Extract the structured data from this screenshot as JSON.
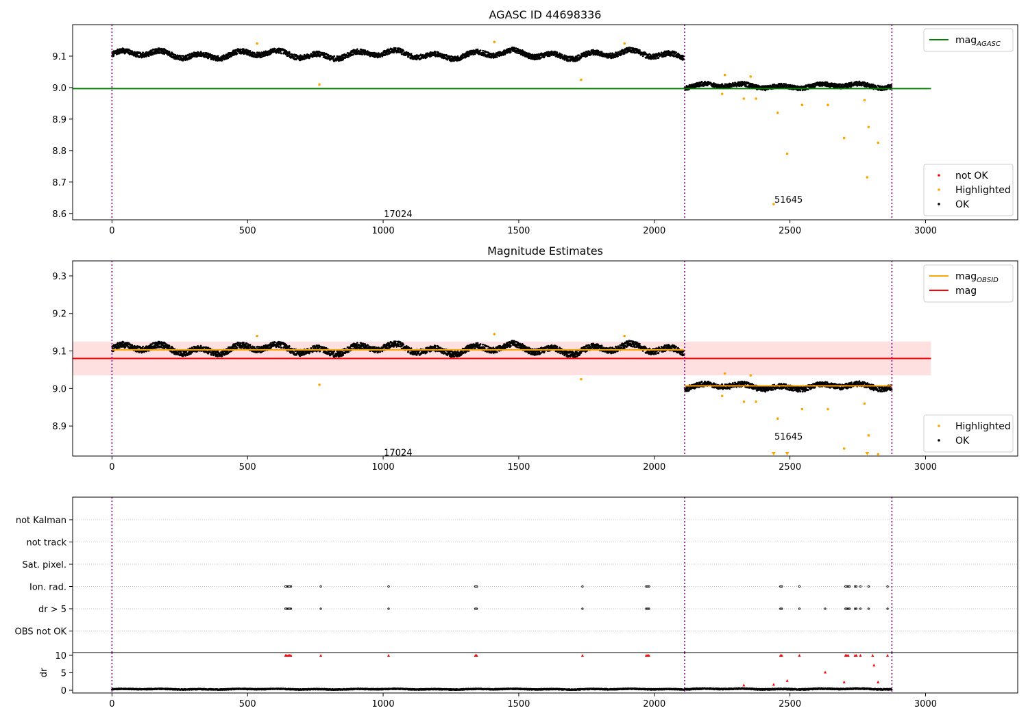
{
  "figure": {
    "background": "#ffffff",
    "vlines_color": "#800080",
    "obsid_boundaries": [
      0,
      2112,
      2876
    ]
  },
  "chart_data": [
    {
      "id": "panel1",
      "type": "scatter",
      "title": "AGASC ID 44698336",
      "xlim": [
        -145,
        3340
      ],
      "ylim": [
        8.58,
        9.2
      ],
      "xticks": [
        0,
        500,
        1000,
        1500,
        2000,
        2500,
        3000
      ],
      "yticks": [
        8.6,
        8.7,
        8.8,
        8.9,
        9.0,
        9.1
      ],
      "grid": false,
      "obsid_labels": [
        {
          "text": "17024",
          "x": 1055,
          "y": 8.6
        },
        {
          "text": "51645",
          "x": 2495,
          "y": 8.645
        }
      ],
      "lines": [
        {
          "name": "mag_AGASC",
          "color": "#008000",
          "x": [
            -145,
            3020
          ],
          "y": [
            8.997,
            8.997
          ]
        }
      ],
      "ok_segments": [
        {
          "x0": 0,
          "x1": 2110,
          "base": 9.105,
          "amp": 0.015,
          "noise": 0.008
        },
        {
          "x0": 2112,
          "x1": 2876,
          "base": 9.005,
          "amp": 0.009,
          "noise": 0.007
        }
      ],
      "highlighted": {
        "color": "#ffa500",
        "points": [
          [
            535,
            9.14
          ],
          [
            765,
            9.01
          ],
          [
            1410,
            9.145
          ],
          [
            1730,
            9.025
          ],
          [
            1890,
            9.14
          ],
          [
            2250,
            8.98
          ],
          [
            2260,
            9.04
          ],
          [
            2330,
            8.965
          ],
          [
            2355,
            9.035
          ],
          [
            2375,
            8.965
          ],
          [
            2440,
            8.63
          ],
          [
            2455,
            8.92
          ],
          [
            2490,
            8.79
          ],
          [
            2545,
            8.945
          ],
          [
            2640,
            8.945
          ],
          [
            2700,
            8.84
          ],
          [
            2775,
            8.96
          ],
          [
            2785,
            8.715
          ],
          [
            2790,
            8.875
          ],
          [
            2825,
            8.825
          ]
        ]
      },
      "legends": [
        {
          "position": "top-right",
          "entries": [
            {
              "label": "mag",
              "sub": "AGASC",
              "marker": "line",
              "color": "#008000"
            }
          ]
        },
        {
          "position": "bottom-right",
          "entries": [
            {
              "label": "not OK",
              "marker": "dot",
              "color": "#ff0000"
            },
            {
              "label": "Highlighted",
              "marker": "dot",
              "color": "#ffa500"
            },
            {
              "label": "OK",
              "marker": "dot",
              "color": "#000000"
            }
          ]
        }
      ]
    },
    {
      "id": "panel2",
      "type": "scatter",
      "title": "Magnitude Estimates",
      "xlim": [
        -145,
        3340
      ],
      "ylim": [
        8.82,
        9.34
      ],
      "xticks": [
        0,
        500,
        1000,
        1500,
        2000,
        2500,
        3000
      ],
      "yticks": [
        8.9,
        9.0,
        9.1,
        9.2,
        9.3
      ],
      "grid": false,
      "obsid_labels": [
        {
          "text": "17024",
          "x": 1055,
          "y": 8.83
        },
        {
          "text": "51645",
          "x": 2495,
          "y": 8.873
        }
      ],
      "band": {
        "color": "#ff0000",
        "opacity": 0.12,
        "x": [
          -145,
          3020
        ],
        "y": [
          9.035,
          9.125
        ]
      },
      "lines": [
        {
          "name": "mag",
          "color": "#ff0000",
          "x": [
            -145,
            3020
          ],
          "y": [
            9.08,
            9.08
          ]
        },
        {
          "name": "mag_OBSID",
          "color": "#ffa500",
          "x": [
            0,
            2110
          ],
          "y": [
            9.103,
            9.103
          ]
        },
        {
          "name": "mag_OBSID",
          "color": "#ffa500",
          "x": [
            2112,
            2876
          ],
          "y": [
            9.007,
            9.007
          ]
        }
      ],
      "ok_segments": [
        {
          "x0": 0,
          "x1": 2110,
          "base": 9.105,
          "amp": 0.015,
          "noise": 0.008
        },
        {
          "x0": 2112,
          "x1": 2876,
          "base": 9.005,
          "amp": 0.009,
          "noise": 0.007
        }
      ],
      "highlighted": {
        "color": "#ffa500",
        "points": [
          [
            535,
            9.14
          ],
          [
            765,
            9.01
          ],
          [
            1410,
            9.145
          ],
          [
            1730,
            9.025
          ],
          [
            1890,
            9.14
          ],
          [
            2250,
            8.98
          ],
          [
            2260,
            9.04
          ],
          [
            2330,
            8.965
          ],
          [
            2355,
            9.035
          ],
          [
            2375,
            8.965
          ],
          [
            2455,
            8.92
          ],
          [
            2545,
            8.945
          ],
          [
            2640,
            8.945
          ],
          [
            2700,
            8.84
          ],
          [
            2775,
            8.96
          ],
          [
            2790,
            8.875
          ],
          [
            2825,
            8.825
          ]
        ]
      },
      "off_scale_markers": {
        "color": "#ffa500",
        "x": [
          2440,
          2490,
          2785
        ],
        "note": "below ylim"
      },
      "legends": [
        {
          "position": "top-right",
          "entries": [
            {
              "label": "mag",
              "sub": "OBSID",
              "marker": "line",
              "color": "#ffa500"
            },
            {
              "label": "mag",
              "marker": "line",
              "color": "#ff0000"
            }
          ]
        },
        {
          "position": "bottom-right",
          "entries": [
            {
              "label": "Highlighted",
              "marker": "dot",
              "color": "#ffa500"
            },
            {
              "label": "OK",
              "marker": "dot",
              "color": "#000000"
            }
          ]
        }
      ]
    },
    {
      "id": "panel3",
      "type": "scatter",
      "title": "",
      "xlim": [
        -145,
        3340
      ],
      "categories": [
        "not Kalman",
        "not track",
        "Sat. pixel.",
        "Ion. rad.",
        "dr > 5",
        "OBS not OK"
      ],
      "grid": true,
      "flag_points": {
        "Ion. rad.": [
          640,
          645,
          650,
          655,
          660,
          770,
          1020,
          1340,
          1345,
          1735,
          1970,
          1975,
          1980,
          2465,
          2470,
          2535,
          2705,
          2710,
          2715,
          2720,
          2740,
          2745,
          2760,
          2790,
          2860
        ],
        "dr > 5": [
          640,
          645,
          650,
          655,
          660,
          770,
          1020,
          1340,
          1345,
          1735,
          1970,
          1975,
          1980,
          2465,
          2470,
          2535,
          2630,
          2705,
          2710,
          2715,
          2720,
          2740,
          2745,
          2760,
          2790,
          2860
        ]
      }
    },
    {
      "id": "panel4",
      "type": "scatter",
      "title": "",
      "xlim": [
        -145,
        3340
      ],
      "ylim": [
        -0.5,
        10.5
      ],
      "ylabel": "dr",
      "xticks": [
        0,
        500,
        1000,
        1500,
        2000,
        2500,
        3000
      ],
      "yticks": [
        0,
        5,
        10
      ],
      "clip_value": 10,
      "ok_segments": [
        {
          "x0": 0,
          "x1": 2110,
          "base": 0.3,
          "amp": 0.12,
          "noise": 0.12
        },
        {
          "x0": 2112,
          "x1": 2876,
          "base": 0.35,
          "amp": 0.15,
          "noise": 0.15
        }
      ],
      "dr_outliers": {
        "color": "#ff0000",
        "points": [
          [
            640,
            10
          ],
          [
            645,
            10
          ],
          [
            650,
            10
          ],
          [
            655,
            10
          ],
          [
            660,
            10
          ],
          [
            770,
            10
          ],
          [
            1020,
            10
          ],
          [
            1340,
            10
          ],
          [
            1345,
            10
          ],
          [
            1735,
            10
          ],
          [
            1970,
            10
          ],
          [
            1975,
            10
          ],
          [
            1980,
            10
          ],
          [
            2465,
            10
          ],
          [
            2470,
            10
          ],
          [
            2535,
            10
          ],
          [
            2705,
            10
          ],
          [
            2710,
            10
          ],
          [
            2715,
            10
          ],
          [
            2740,
            10
          ],
          [
            2745,
            10
          ],
          [
            2760,
            10
          ],
          [
            2805,
            10
          ],
          [
            2860,
            10
          ],
          [
            2810,
            7.2
          ],
          [
            2490,
            2.8
          ],
          [
            2630,
            5.2
          ],
          [
            2700,
            2.4
          ],
          [
            2825,
            2.4
          ],
          [
            2330,
            1.5
          ],
          [
            2440,
            1.7
          ]
        ]
      }
    }
  ]
}
